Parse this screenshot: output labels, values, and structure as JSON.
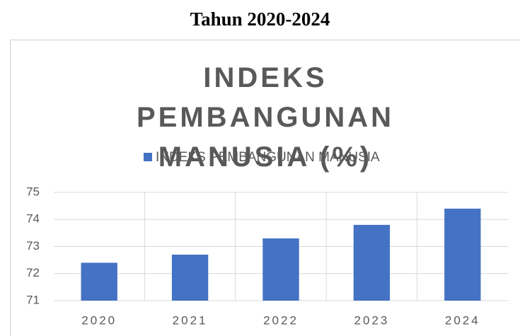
{
  "heading": "Tahun 2020-2024",
  "chart_data": {
    "type": "bar",
    "title": "INDEKS PEMBANGUNAN MANUSIA (%)",
    "categories": [
      "2020",
      "2021",
      "2022",
      "2023",
      "2024"
    ],
    "series": [
      {
        "name": "INDEKS PEMBANGUNAN MANUSIA",
        "color": "#4472c4",
        "values": [
          72.4,
          72.7,
          73.3,
          73.8,
          74.4
        ]
      }
    ],
    "ylim": [
      71,
      75
    ],
    "yticks": [
      71,
      72,
      73,
      74,
      75
    ],
    "grid": true,
    "legend": "top"
  }
}
